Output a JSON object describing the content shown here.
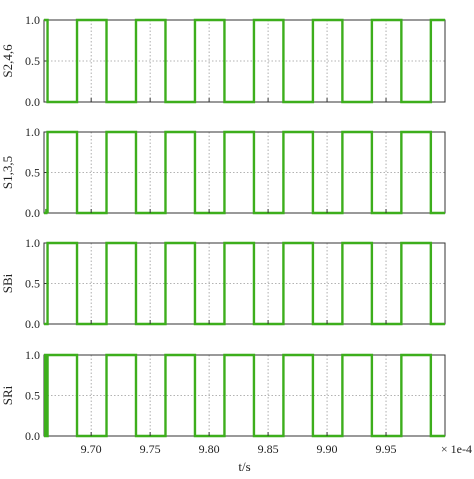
{
  "chart_data": [
    {
      "type": "line",
      "ylabel": "S2,4,6",
      "ylim": [
        0,
        1
      ],
      "yticks": [
        "0.0",
        "0.5",
        "1.0"
      ],
      "xlim": [
        9.66,
        10.0
      ],
      "grid": true,
      "series": [
        {
          "x": [
            9.66,
            9.663,
            9.663,
            9.688,
            9.688,
            9.713,
            9.713,
            9.738,
            9.738,
            9.763,
            9.763,
            9.788,
            9.788,
            9.813,
            9.813,
            9.838,
            9.838,
            9.863,
            9.863,
            9.888,
            9.888,
            9.913,
            9.913,
            9.938,
            9.938,
            9.963,
            9.963,
            9.988,
            9.988,
            10.0
          ],
          "y": [
            1,
            1,
            0,
            0,
            1,
            1,
            0,
            0,
            1,
            1,
            0,
            0,
            1,
            1,
            0,
            0,
            1,
            1,
            0,
            0,
            1,
            1,
            0,
            0,
            1,
            1,
            0,
            0,
            1,
            1
          ]
        }
      ]
    },
    {
      "type": "line",
      "ylabel": "S1,3,5",
      "ylim": [
        0,
        1
      ],
      "yticks": [
        "0.0",
        "0.5",
        "1.0"
      ],
      "xlim": [
        9.66,
        10.0
      ],
      "grid": true,
      "series": [
        {
          "x": [
            9.66,
            9.662,
            9.662,
            9.663,
            9.663,
            9.688,
            9.688,
            9.713,
            9.713,
            9.738,
            9.738,
            9.763,
            9.763,
            9.788,
            9.788,
            9.813,
            9.813,
            9.838,
            9.838,
            9.863,
            9.863,
            9.888,
            9.888,
            9.913,
            9.913,
            9.938,
            9.938,
            9.963,
            9.963,
            9.988,
            9.988,
            10.0
          ],
          "y": [
            0,
            0,
            0.05,
            0,
            1,
            1,
            0,
            0,
            1,
            1,
            0,
            0,
            1,
            1,
            0,
            0,
            1,
            1,
            0,
            0,
            1,
            1,
            0,
            0,
            1,
            1,
            0,
            0,
            1,
            1,
            0,
            0
          ]
        }
      ]
    },
    {
      "type": "line",
      "ylabel": "SBi",
      "ylim": [
        0,
        1
      ],
      "yticks": [
        "0.0",
        "0.5",
        "1.0"
      ],
      "xlim": [
        9.66,
        10.0
      ],
      "grid": true,
      "series": [
        {
          "x": [
            9.66,
            9.663,
            9.663,
            9.688,
            9.688,
            9.713,
            9.713,
            9.738,
            9.738,
            9.763,
            9.763,
            9.788,
            9.788,
            9.813,
            9.813,
            9.838,
            9.838,
            9.863,
            9.863,
            9.888,
            9.888,
            9.913,
            9.913,
            9.938,
            9.938,
            9.963,
            9.963,
            9.988,
            9.988,
            10.0
          ],
          "y": [
            0,
            0,
            1,
            1,
            0,
            0,
            1,
            1,
            0,
            0,
            1,
            1,
            0,
            0,
            1,
            1,
            0,
            0,
            1,
            1,
            0,
            0,
            1,
            1,
            0,
            0,
            1,
            1,
            0,
            0
          ]
        }
      ]
    },
    {
      "type": "line",
      "ylabel": "SRi",
      "ylim": [
        0,
        1
      ],
      "yticks": [
        "0.0",
        "0.5",
        "1.0"
      ],
      "xlim": [
        9.66,
        10.0
      ],
      "xlabel": "t/s",
      "xticks": [
        "9.70",
        "9.75",
        "9.80",
        "9.85",
        "9.90",
        "9.95"
      ],
      "xtick_values": [
        9.7,
        9.75,
        9.8,
        9.85,
        9.9,
        9.95
      ],
      "scale_note": "× 1e-4",
      "grid": true,
      "series": [
        {
          "x": [
            9.66,
            9.661,
            9.661,
            9.663,
            9.663,
            9.688,
            9.688,
            9.713,
            9.713,
            9.738,
            9.738,
            9.763,
            9.763,
            9.788,
            9.788,
            9.813,
            9.813,
            9.838,
            9.838,
            9.863,
            9.863,
            9.888,
            9.888,
            9.913,
            9.913,
            9.938,
            9.938,
            9.963,
            9.963,
            9.988,
            9.988,
            10.0
          ],
          "y": [
            1,
            1,
            0,
            0,
            1,
            1,
            0,
            0,
            1,
            1,
            0,
            0,
            1,
            1,
            0,
            0,
            1,
            1,
            0,
            0,
            1,
            1,
            0,
            0,
            1,
            1,
            0,
            0,
            1,
            1,
            0,
            0
          ]
        }
      ]
    }
  ],
  "style": {
    "line_color": "#3dae1c",
    "grid_color": "#9a9a9a",
    "axis_color": "#333333"
  }
}
